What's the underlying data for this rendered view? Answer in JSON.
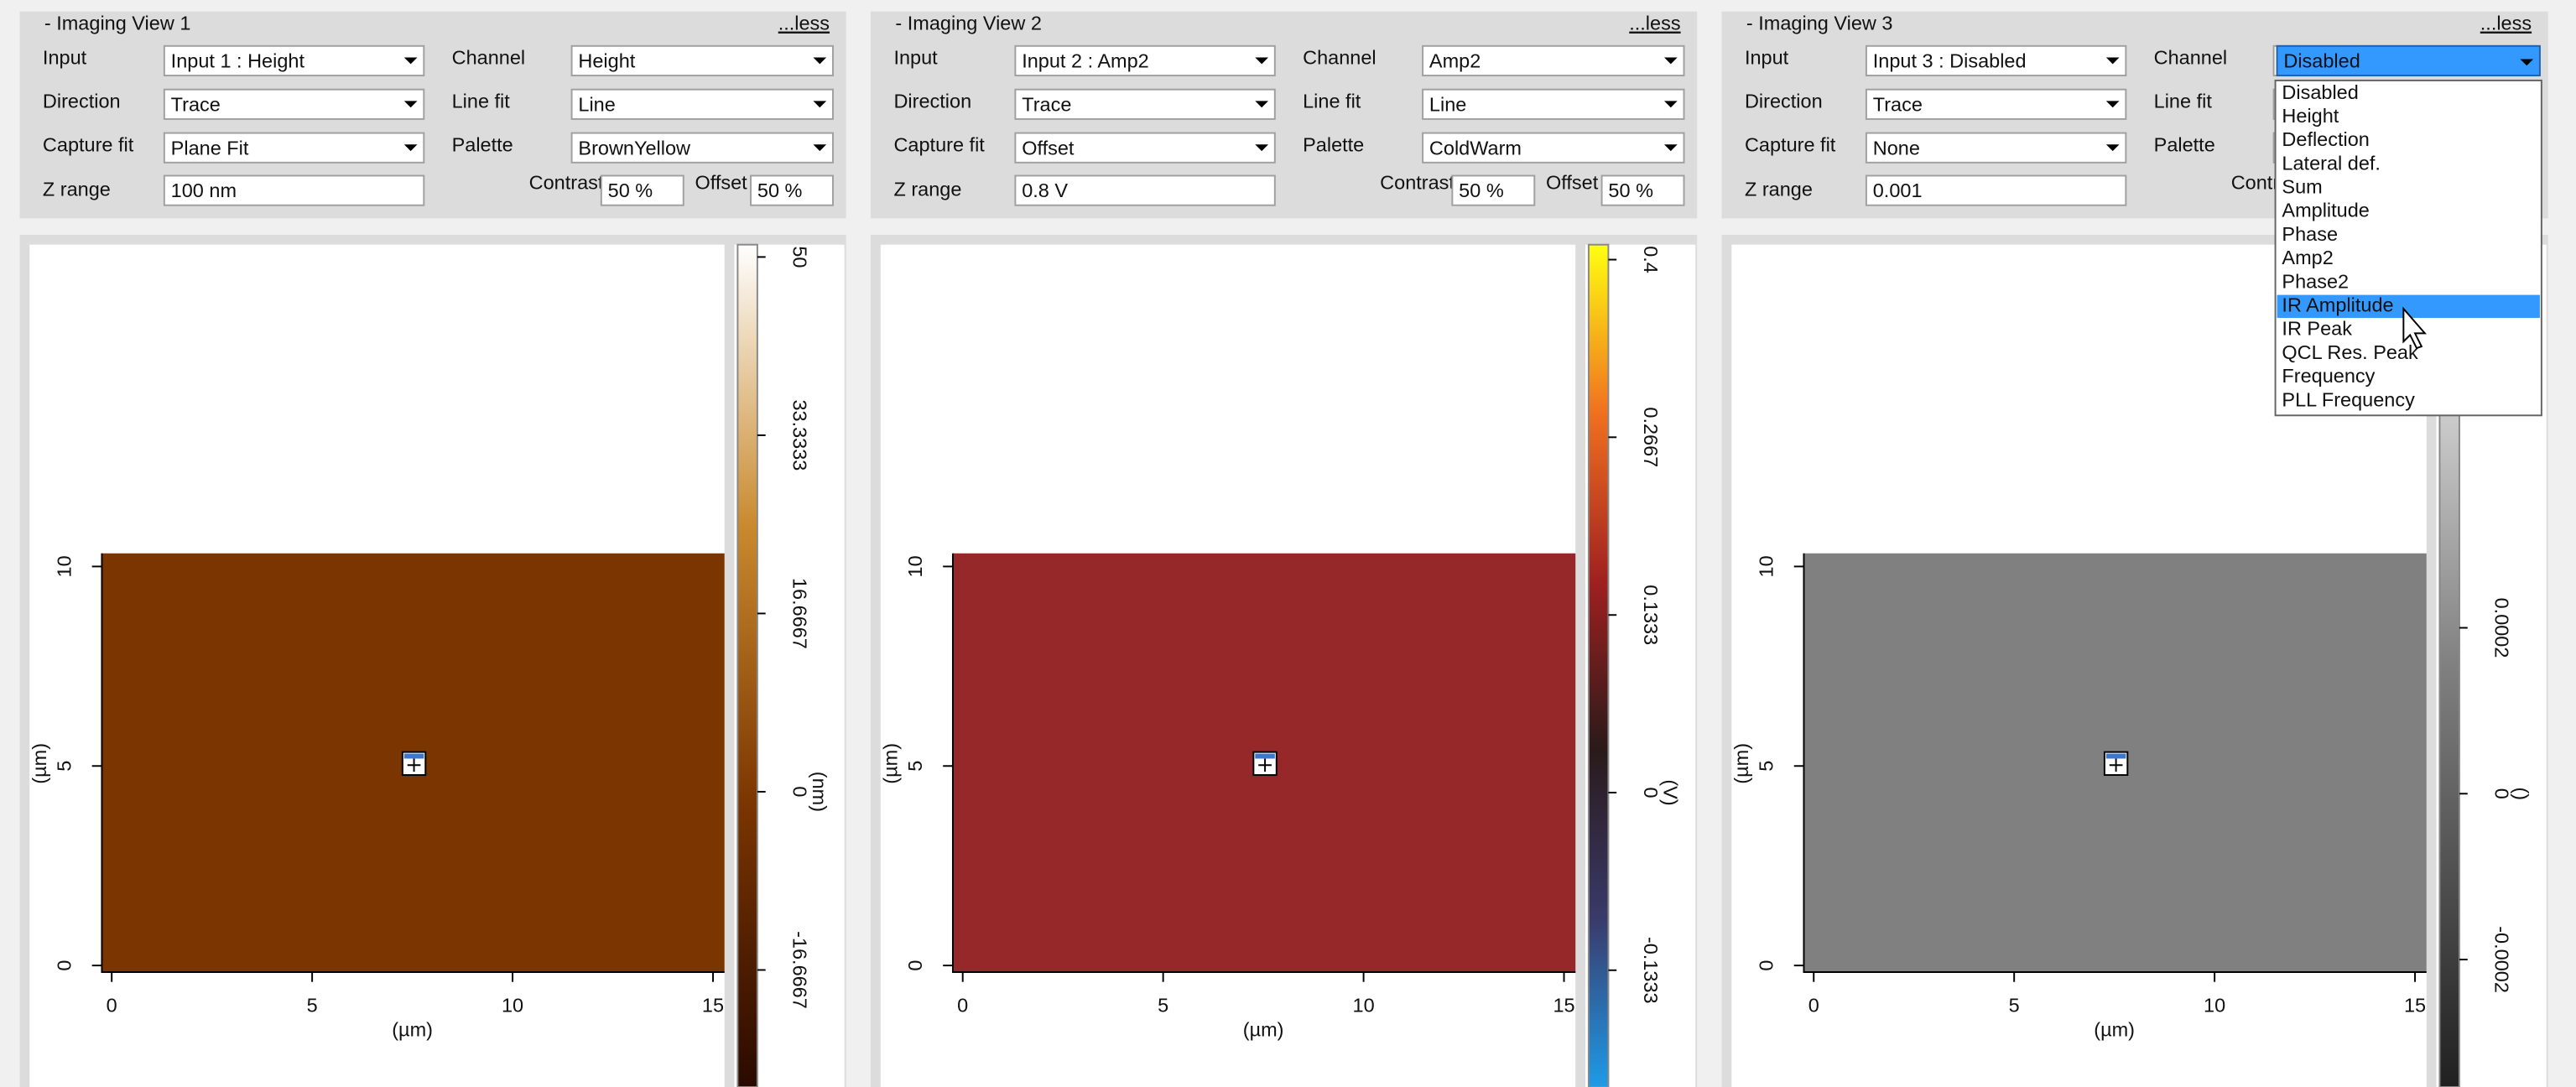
{
  "panels": [
    {
      "title": "- Imaging View 1",
      "less": "...less",
      "fields": [
        {
          "label": "Input",
          "value": "Input 1 : Height"
        },
        {
          "label": "Channel",
          "value": "Height"
        },
        {
          "label": "Direction",
          "value": "Trace"
        },
        {
          "label": "Line fit",
          "value": "Line"
        },
        {
          "label": "Capture fit",
          "value": "Plane Fit"
        },
        {
          "label": "Palette",
          "value": "BrownYellow"
        }
      ],
      "z_range": {
        "label": "Z range",
        "value": "100 nm"
      },
      "contrast": {
        "label": "Contrast",
        "value": "50 %"
      },
      "offset": {
        "label": "Offset",
        "value": "50 %"
      },
      "plot": {
        "image_color": "#7a3500",
        "x_label": "(µm)",
        "y_label": "(µm)",
        "xticks": [
          0,
          5,
          10,
          15
        ],
        "yticks": [
          0,
          5,
          10
        ],
        "colorbar_colors": [
          "#2a0a00",
          "#7a3500",
          "#c98a2e",
          "#ffffff"
        ],
        "colorbar_unit": "(nm)",
        "colorbar_lim": [
          -25,
          51
        ],
        "colorbar_ticks": [
          50,
          33.3333,
          16.6667,
          0,
          -16.6667
        ]
      }
    },
    {
      "title": "- Imaging View 2",
      "less": "...less",
      "fields": [
        {
          "label": "Input",
          "value": "Input 2 : Amp2"
        },
        {
          "label": "Channel",
          "value": "Amp2"
        },
        {
          "label": "Direction",
          "value": "Trace"
        },
        {
          "label": "Line fit",
          "value": "Line"
        },
        {
          "label": "Capture fit",
          "value": "Offset"
        },
        {
          "label": "Palette",
          "value": "ColdWarm"
        }
      ],
      "z_range": {
        "label": "Z range",
        "value": "0.8 V"
      },
      "contrast": {
        "label": "Contrast",
        "value": "50 %"
      },
      "offset": {
        "label": "Offset",
        "value": "50 %"
      },
      "plot": {
        "image_color": "#96282a",
        "x_label": "(µm)",
        "y_label": "(µm)",
        "xticks": [
          0,
          5,
          10,
          15
        ],
        "yticks": [
          0,
          5,
          10
        ],
        "colorbar_colors": [
          "#1e9be8",
          "#3a3a6a",
          "#2a1a1a",
          "#a02020",
          "#f07020",
          "#ffff10"
        ],
        "colorbar_unit": "(V)",
        "colorbar_lim": [
          -0.2,
          0.41
        ],
        "colorbar_ticks": [
          0.4,
          0.2667,
          0.1333,
          0,
          -0.1333
        ]
      }
    },
    {
      "title": "- Imaging View 3",
      "less": "...less",
      "fields": [
        {
          "label": "Input",
          "value": "Input 3 : Disabled"
        },
        {
          "label": "Channel",
          "value": "Disabled"
        },
        {
          "label": "Direction",
          "value": "Trace"
        },
        {
          "label": "Line fit"
        },
        {
          "label": "Capture fit",
          "value": "None"
        },
        {
          "label": "Palette"
        }
      ],
      "z_range": {
        "label": "Z range",
        "value": "0.001"
      },
      "contrast": {
        "label": "Contrast"
      },
      "plot": {
        "image_color": "#808080",
        "x_label": "(µm)",
        "y_label": "(µm)",
        "xticks": [
          0,
          5,
          10,
          15
        ],
        "yticks": [
          0,
          5,
          10
        ],
        "colorbar_colors": [
          "#202020",
          "#808080",
          "#ffffff"
        ],
        "colorbar_unit": "()",
        "colorbar_lim": [
          -0.00032,
          0.00066
        ],
        "colorbar_ticks": [
          0.0002,
          0,
          -0.0002
        ]
      }
    }
  ],
  "dropdown": {
    "options": [
      "Disabled",
      "Height",
      "Deflection",
      "Lateral def.",
      "Sum",
      "Amplitude",
      "Phase",
      "Amp2",
      "Phase2",
      "IR Amplitude",
      "IR Peak",
      "QCL Res. Peak",
      "Frequency",
      "PLL Frequency"
    ],
    "highlighted_index": 9
  }
}
